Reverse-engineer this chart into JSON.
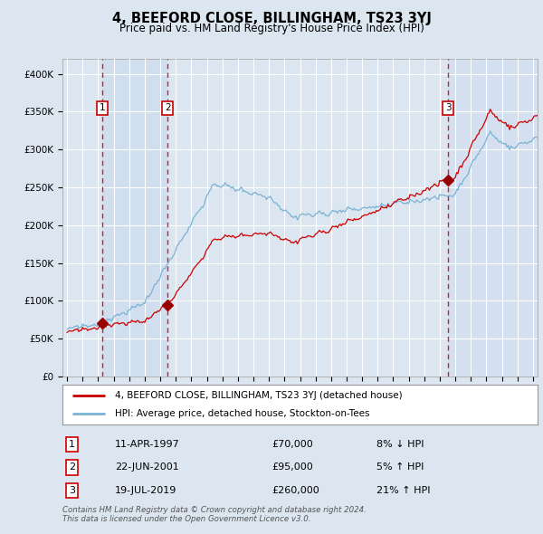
{
  "title": "4, BEEFORD CLOSE, BILLINGHAM, TS23 3YJ",
  "subtitle": "Price paid vs. HM Land Registry's House Price Index (HPI)",
  "legend_line1": "4, BEEFORD CLOSE, BILLINGHAM, TS23 3YJ (detached house)",
  "legend_line2": "HPI: Average price, detached house, Stockton-on-Tees",
  "footer_line1": "Contains HM Land Registry data © Crown copyright and database right 2024.",
  "footer_line2": "This data is licensed under the Open Government Licence v3.0.",
  "sales": [
    {
      "label": "1",
      "date": "11-APR-1997",
      "price": 70000,
      "hpi_pct": "8% ↓ HPI",
      "year": 1997.28
    },
    {
      "label": "2",
      "date": "22-JUN-2001",
      "price": 95000,
      "hpi_pct": "5% ↑ HPI",
      "year": 2001.47
    },
    {
      "label": "3",
      "date": "19-JUL-2019",
      "price": 260000,
      "hpi_pct": "21% ↑ HPI",
      "year": 2019.54
    }
  ],
  "ylim": [
    0,
    420000
  ],
  "yticks": [
    0,
    50000,
    100000,
    150000,
    200000,
    250000,
    300000,
    350000,
    400000
  ],
  "ytick_labels": [
    "£0",
    "£50K",
    "£100K",
    "£150K",
    "£200K",
    "£250K",
    "£300K",
    "£350K",
    "£400K"
  ],
  "xlim_start": 1994.7,
  "xlim_end": 2025.3,
  "bg_color": "#dce6f1",
  "plot_bg_color": "#dce6f1",
  "grid_color": "#ffffff",
  "hpi_line_color": "#7ab3d4",
  "price_line_color": "#cc0000",
  "sale_dot_color": "#990000",
  "dashed_line_color": "#cc0000",
  "sale_box_color": "#cc0000",
  "shaded_region_color": "#c8d9ed"
}
